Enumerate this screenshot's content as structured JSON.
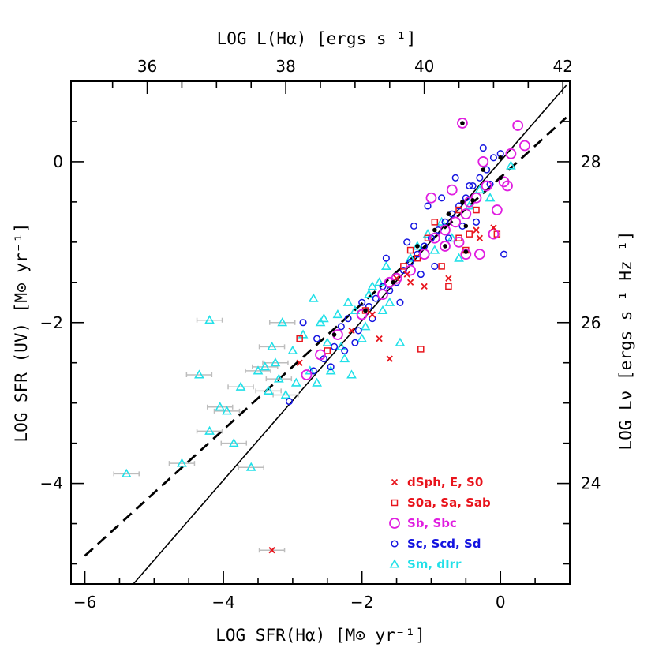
{
  "chart_data": {
    "type": "scatter",
    "bottom_axis": {
      "label": "LOG SFR(Hα) [M⊙ yr⁻¹]",
      "range": [
        -6.2,
        1.0
      ],
      "ticks": [
        "−6",
        "−4",
        "−2",
        "0"
      ],
      "tick_values": [
        -6,
        -4,
        -2,
        0
      ]
    },
    "left_axis": {
      "label": "LOG SFR (UV) [M⊙ yr⁻¹]",
      "range": [
        -5.25,
        1.0
      ],
      "ticks": [
        "−4",
        "−2",
        "0"
      ],
      "tick_values": [
        -4,
        -2,
        0
      ]
    },
    "top_axis": {
      "label": "LOG L(Hα) [ergs s⁻¹]",
      "ticks": [
        "36",
        "38",
        "40",
        "42"
      ],
      "tick_values": [
        36,
        38,
        40,
        42
      ]
    },
    "right_axis": {
      "label": "LOG Lν [ergs s⁻¹ Hz⁻¹]",
      "ticks": [
        "24",
        "26",
        "28"
      ],
      "tick_values": [
        24,
        26,
        28
      ]
    },
    "lines": [
      {
        "style": "solid",
        "points": [
          [
            -5.3,
            -5.25
          ],
          [
            0.95,
            0.95
          ]
        ]
      },
      {
        "style": "dashed",
        "points": [
          [
            -6.0,
            -4.9
          ],
          [
            0.95,
            0.55
          ]
        ]
      }
    ],
    "legend": {
      "placement": "bottom-right",
      "entries": [
        {
          "label": "dSph, E, S0",
          "marker": "cross",
          "color": "#e8141c"
        },
        {
          "label": "S0a, Sa, Sab",
          "marker": "square",
          "color": "#e8141c"
        },
        {
          "label": "Sb, Sbc",
          "marker": "big-circle",
          "color": "#e01ee0"
        },
        {
          "label": "Sc, Scd, Sd",
          "marker": "circle",
          "color": "#1414e0"
        },
        {
          "label": "Sm, dIrr",
          "marker": "triangle",
          "color": "#22e0e8"
        }
      ]
    },
    "series": [
      {
        "name": "dSph, E, S0",
        "marker": "cross",
        "color": "#e8141c",
        "points": [
          [
            -3.3,
            -4.83
          ],
          [
            -2.9,
            -2.5
          ],
          [
            -2.15,
            -2.1
          ],
          [
            -1.75,
            -2.2
          ],
          [
            -1.6,
            -2.45
          ],
          [
            -1.35,
            -1.4
          ],
          [
            -1.1,
            -1.55
          ],
          [
            -0.75,
            -1.45
          ],
          [
            -0.35,
            -0.85
          ],
          [
            -0.1,
            -0.82
          ],
          [
            -0.3,
            -0.95
          ],
          [
            -1.3,
            -1.5
          ],
          [
            -1.5,
            -1.45
          ],
          [
            -1.85,
            -1.9
          ]
        ]
      },
      {
        "name": "S0a, Sa, Sab",
        "marker": "square",
        "color": "#e8141c",
        "points": [
          [
            -2.9,
            -2.2
          ],
          [
            -2.5,
            -2.35
          ],
          [
            -1.95,
            -1.85
          ],
          [
            -1.15,
            -2.33
          ],
          [
            -0.75,
            -1.55
          ],
          [
            -1.3,
            -1.1
          ],
          [
            -1.05,
            -0.95
          ],
          [
            -0.85,
            -1.3
          ],
          [
            -0.6,
            -0.95
          ],
          [
            -0.45,
            -0.9
          ],
          [
            -0.35,
            -0.6
          ],
          [
            -0.6,
            -0.6
          ],
          [
            -0.05,
            -0.9
          ],
          [
            -1.2,
            -1.2
          ],
          [
            -0.95,
            -0.75
          ],
          [
            -1.4,
            -1.3
          ],
          [
            -0.5,
            -1.1
          ]
        ]
      },
      {
        "name": "Sb, Sbc",
        "marker": "big-circle",
        "color": "#e01ee0",
        "points": [
          [
            -2.8,
            -2.65
          ],
          [
            -2.6,
            -2.4
          ],
          [
            -2.35,
            -2.15
          ],
          [
            -2.0,
            -1.9
          ],
          [
            -1.7,
            -1.65
          ],
          [
            -1.5,
            -1.45
          ],
          [
            -1.3,
            -1.35
          ],
          [
            -1.1,
            -1.15
          ],
          [
            -0.95,
            -0.95
          ],
          [
            -0.8,
            -0.85
          ],
          [
            -0.65,
            -0.75
          ],
          [
            -0.5,
            -0.65
          ],
          [
            -0.35,
            -0.45
          ],
          [
            -0.2,
            -0.3
          ],
          [
            -0.05,
            -0.6
          ],
          [
            0.1,
            -0.3
          ],
          [
            0.25,
            0.45
          ],
          [
            0.35,
            0.2
          ],
          [
            0.15,
            0.1
          ],
          [
            -0.55,
            0.48
          ],
          [
            -0.5,
            -1.15
          ],
          [
            -0.3,
            -1.15
          ],
          [
            -0.45,
            -0.5
          ],
          [
            -0.7,
            -0.35
          ],
          [
            -0.1,
            -0.9
          ],
          [
            -0.8,
            -1.05
          ],
          [
            -1.0,
            -0.45
          ],
          [
            -1.6,
            -1.5
          ],
          [
            -0.25,
            0.0
          ],
          [
            0.05,
            -0.25
          ],
          [
            -0.6,
            -1.0
          ]
        ]
      },
      {
        "name": "Sc, Scd, Sd",
        "marker": "circle",
        "color": "#1414e0",
        "points": [
          [
            -3.05,
            -2.98
          ],
          [
            -2.7,
            -2.6
          ],
          [
            -2.55,
            -2.45
          ],
          [
            -2.4,
            -2.3
          ],
          [
            -2.3,
            -2.05
          ],
          [
            -2.2,
            -1.95
          ],
          [
            -2.1,
            -2.25
          ],
          [
            -2.0,
            -1.75
          ],
          [
            -1.9,
            -1.8
          ],
          [
            -1.8,
            -1.7
          ],
          [
            -1.7,
            -1.55
          ],
          [
            -1.6,
            -1.6
          ],
          [
            -1.5,
            -1.5
          ],
          [
            -1.4,
            -1.35
          ],
          [
            -1.3,
            -1.25
          ],
          [
            -1.2,
            -1.15
          ],
          [
            -1.1,
            -1.05
          ],
          [
            -1.0,
            -0.95
          ],
          [
            -0.9,
            -0.85
          ],
          [
            -0.8,
            -0.75
          ],
          [
            -0.7,
            -0.65
          ],
          [
            -0.6,
            -0.55
          ],
          [
            -0.5,
            -0.45
          ],
          [
            -0.4,
            -0.3
          ],
          [
            -0.3,
            -0.2
          ],
          [
            -0.2,
            -0.1
          ],
          [
            -0.1,
            0.05
          ],
          [
            0.0,
            0.1
          ],
          [
            -0.25,
            0.17
          ],
          [
            -0.15,
            -0.28
          ],
          [
            0.05,
            -1.15
          ],
          [
            -0.45,
            -0.3
          ],
          [
            -0.55,
            -0.8
          ],
          [
            -0.75,
            -0.95
          ],
          [
            -0.95,
            -1.3
          ],
          [
            -1.15,
            -1.4
          ],
          [
            -1.45,
            -1.75
          ],
          [
            -1.65,
            -1.2
          ],
          [
            -1.85,
            -1.95
          ],
          [
            -2.05,
            -2.1
          ],
          [
            -2.25,
            -2.35
          ],
          [
            -2.45,
            -2.55
          ],
          [
            -2.65,
            -2.2
          ],
          [
            -2.85,
            -2.0
          ],
          [
            -1.05,
            -0.55
          ],
          [
            -1.35,
            -1.0
          ],
          [
            -0.35,
            -0.75
          ],
          [
            -0.65,
            -0.2
          ],
          [
            -0.85,
            -0.45
          ],
          [
            -1.25,
            -0.8
          ]
        ]
      },
      {
        "name": "Sm, dIrr",
        "marker": "triangle",
        "color": "#22e0e8",
        "points": [
          [
            -5.4,
            -3.88
          ],
          [
            -4.6,
            -3.75
          ],
          [
            -4.2,
            -3.35
          ],
          [
            -4.05,
            -3.05
          ],
          [
            -3.95,
            -3.1
          ],
          [
            -3.85,
            -3.5
          ],
          [
            -3.75,
            -2.8
          ],
          [
            -3.6,
            -3.8
          ],
          [
            -4.2,
            -1.97
          ],
          [
            -4.35,
            -2.65
          ],
          [
            -3.5,
            -2.6
          ],
          [
            -3.35,
            -2.85
          ],
          [
            -3.2,
            -2.7
          ],
          [
            -3.0,
            -2.35
          ],
          [
            -3.15,
            -2.0
          ],
          [
            -3.3,
            -2.3
          ],
          [
            -2.95,
            -2.75
          ],
          [
            -2.75,
            -2.6
          ],
          [
            -2.85,
            -2.15
          ],
          [
            -2.6,
            -2.0
          ],
          [
            -2.5,
            -2.25
          ],
          [
            -2.35,
            -1.9
          ],
          [
            -2.2,
            -1.75
          ],
          [
            -2.1,
            -1.85
          ],
          [
            -1.95,
            -2.05
          ],
          [
            -1.85,
            -1.55
          ],
          [
            -1.75,
            -1.5
          ],
          [
            -1.6,
            -1.75
          ],
          [
            -1.45,
            -2.25
          ],
          [
            -1.3,
            -1.2
          ],
          [
            -1.2,
            -1.05
          ],
          [
            -1.05,
            -0.9
          ],
          [
            -0.95,
            -1.1
          ],
          [
            -0.85,
            -0.75
          ],
          [
            -0.7,
            -0.95
          ],
          [
            -0.6,
            -1.2
          ],
          [
            -0.45,
            -0.55
          ],
          [
            -0.3,
            -0.35
          ],
          [
            -0.15,
            -0.45
          ],
          [
            0.15,
            -0.05
          ],
          [
            -3.1,
            -2.9
          ],
          [
            -2.65,
            -2.75
          ],
          [
            -2.25,
            -2.45
          ],
          [
            -2.0,
            -2.2
          ],
          [
            -1.65,
            -1.3
          ],
          [
            -1.9,
            -1.65
          ],
          [
            -2.7,
            -1.7
          ],
          [
            -2.3,
            -2.3
          ],
          [
            -3.4,
            -2.55
          ],
          [
            -2.55,
            -1.95
          ],
          [
            -3.25,
            -2.5
          ],
          [
            -2.45,
            -2.6
          ],
          [
            -1.7,
            -1.85
          ],
          [
            -2.15,
            -2.65
          ]
        ]
      },
      {
        "name": "",
        "marker": "dot",
        "color": "#000000",
        "points": [
          [
            -2.4,
            -2.15
          ],
          [
            -1.95,
            -1.85
          ],
          [
            -1.55,
            -1.5
          ],
          [
            -1.2,
            -1.05
          ],
          [
            -0.95,
            -0.85
          ],
          [
            -0.75,
            -0.65
          ],
          [
            -0.55,
            -0.5
          ],
          [
            -0.4,
            -0.48
          ],
          [
            -0.55,
            0.48
          ],
          [
            -0.5,
            -1.12
          ],
          [
            -0.25,
            -0.1
          ],
          [
            0.0,
            -0.2
          ],
          [
            0.0,
            0.05
          ],
          [
            -0.8,
            -1.05
          ],
          [
            -0.5,
            -0.8
          ]
        ]
      }
    ]
  }
}
